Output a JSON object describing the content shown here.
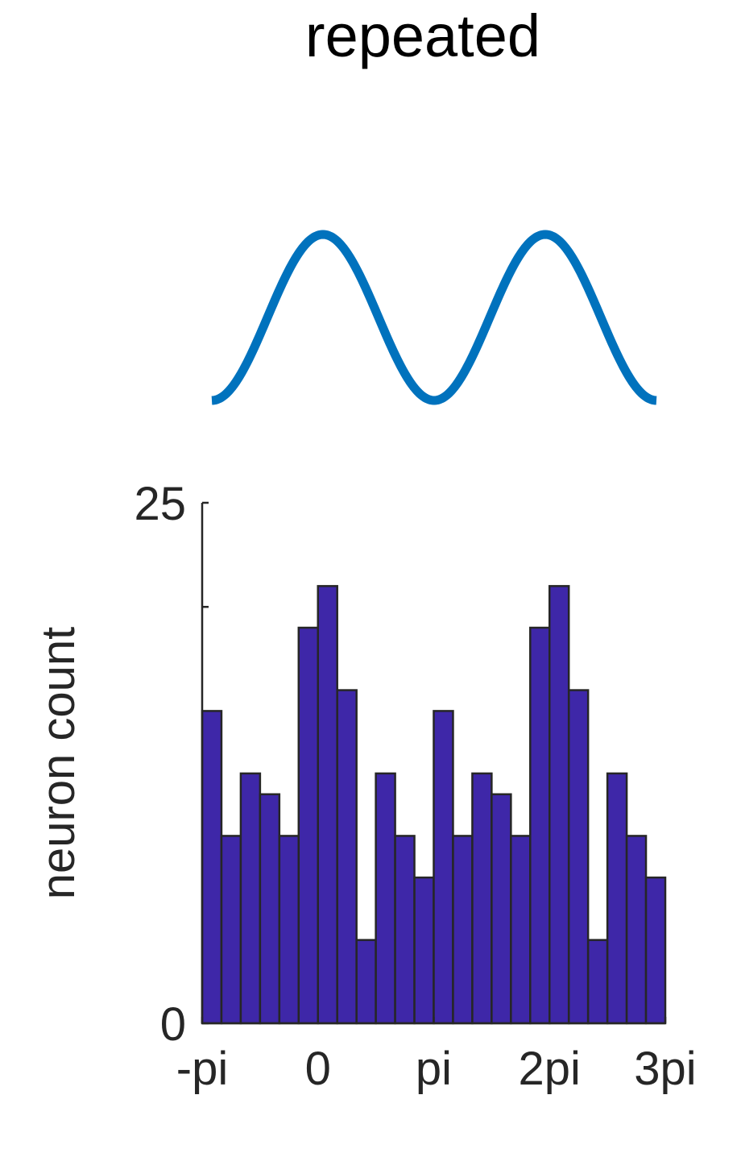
{
  "title": "repeated",
  "colors": {
    "curve": "#0072BD",
    "bar_fill": "#3E27A8",
    "bar_edge": "#262626",
    "axis": "#262626"
  },
  "chart_data": [
    {
      "type": "line",
      "x_range": [
        -3.14159,
        9.42478
      ],
      "function": "cos(x)",
      "y_range": [
        -1,
        1
      ],
      "axes_visible": false
    },
    {
      "type": "bar",
      "histogram": true,
      "bin_count": 24,
      "values": [
        15,
        9,
        12,
        11,
        9,
        19,
        21,
        16,
        4,
        12,
        9,
        7,
        15,
        9,
        12,
        11,
        9,
        19,
        21,
        16,
        4,
        12,
        9,
        7
      ],
      "x_range": [
        -3.14159,
        9.42478
      ],
      "x_ticks": [
        {
          "value": -3.14159,
          "label": "-pi"
        },
        {
          "value": 0,
          "label": "0"
        },
        {
          "value": 3.14159,
          "label": "pi"
        },
        {
          "value": 6.28319,
          "label": "2pi"
        },
        {
          "value": 9.42478,
          "label": "3pi"
        }
      ],
      "ylim": [
        0,
        25
      ],
      "y_ticks": [
        {
          "value": 0,
          "label": "0"
        },
        {
          "value": 20,
          "label": ""
        },
        {
          "value": 25,
          "label": "25"
        }
      ],
      "ylabel": "neuron count",
      "xlabel": "",
      "grid": false
    }
  ]
}
